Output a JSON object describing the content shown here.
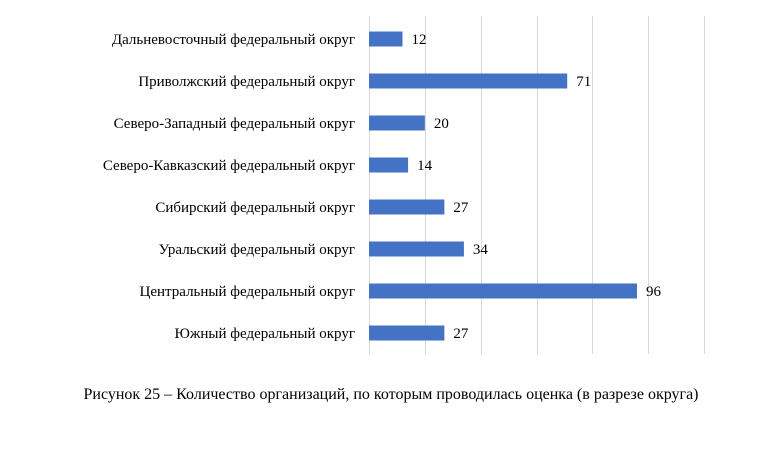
{
  "caption": "Рисунок 25 – Количество организаций, по которым проводилась оценка (в разрезе округа)",
  "colors": {
    "bar": "#4472C4",
    "grid": "#D9D9D9"
  },
  "chart_data": {
    "type": "bar",
    "orientation": "horizontal",
    "categories": [
      "Дальневосточный федеральный округ",
      "Приволжский федеральный округ",
      "Северо-Западный федеральный округ",
      "Северо-Кавказский федеральный округ",
      "Сибирский федеральный округ",
      "Уральский федеральный округ",
      "Центральный федеральный округ",
      "Южный федеральный округ"
    ],
    "values": [
      12,
      71,
      20,
      14,
      27,
      34,
      96,
      27
    ],
    "data_labels": [
      "12",
      "71",
      "20",
      "14",
      "27",
      "34",
      "96",
      "27"
    ],
    "xlim": [
      0,
      120
    ],
    "grid": true,
    "legend": "none",
    "title": "",
    "xlabel": "",
    "ylabel": ""
  }
}
